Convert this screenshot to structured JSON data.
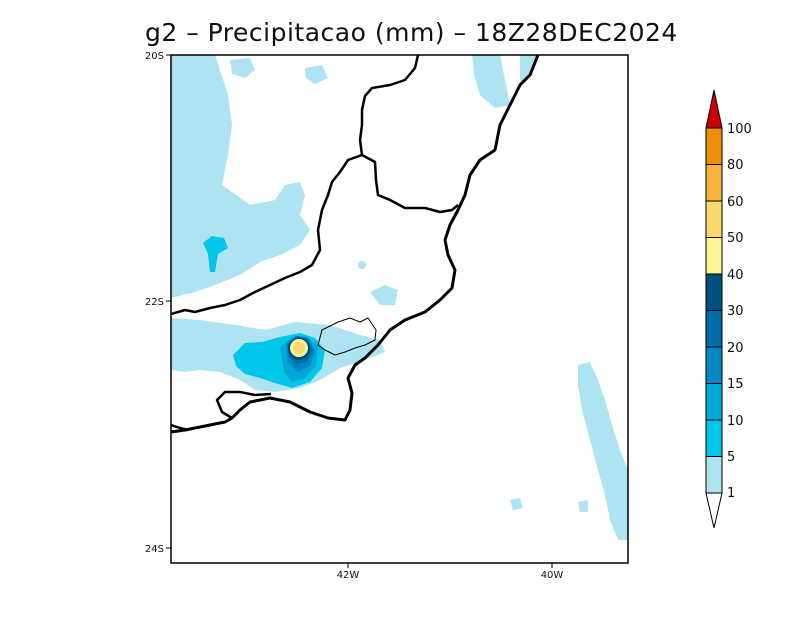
{
  "title": "g2 – Precipitacao (mm) – 18Z28DEC2024",
  "lat_ticks": [
    "20S",
    "22S",
    "24S"
  ],
  "lon_ticks": [
    "42W",
    "40W"
  ],
  "legend": {
    "levels": [
      "1",
      "5",
      "10",
      "15",
      "20",
      "30",
      "40",
      "50",
      "60",
      "80",
      "100"
    ],
    "colors": [
      "#ffffff",
      "#aee3f2",
      "#00c6e8",
      "#00a7d8",
      "#0088c6",
      "#006da8",
      "#004f7e",
      "#fdf598",
      "#fbd86a",
      "#f5b43b",
      "#ee8e0a",
      "#cc0000"
    ]
  }
}
